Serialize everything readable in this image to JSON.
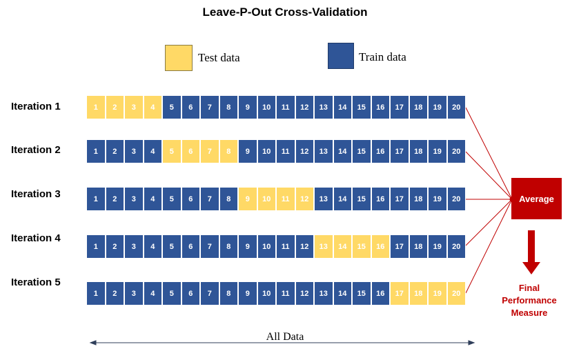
{
  "title": "Leave-P-Out Cross-Validation",
  "legend": {
    "test_label": "Test data",
    "train_label": "Train data"
  },
  "colors": {
    "test": "#FFD966",
    "train": "#2F5597",
    "accent": "#C00000"
  },
  "cells": [
    "1",
    "2",
    "3",
    "4",
    "5",
    "6",
    "7",
    "8",
    "9",
    "10",
    "11",
    "12",
    "13",
    "14",
    "15",
    "16",
    "17",
    "18",
    "19",
    "20"
  ],
  "iterations": [
    {
      "label": "Iteration 1",
      "test_range": [
        1,
        4
      ]
    },
    {
      "label": "Iteration 2",
      "test_range": [
        5,
        8
      ]
    },
    {
      "label": "Iteration 3",
      "test_range": [
        9,
        12
      ]
    },
    {
      "label": "Iteration 4",
      "test_range": [
        13,
        16
      ]
    },
    {
      "label": "Iteration 5",
      "test_range": [
        17,
        20
      ]
    }
  ],
  "average_label": "Average",
  "final_label": [
    "Final",
    "Performance",
    "Measure"
  ],
  "axis_label": "All Data"
}
